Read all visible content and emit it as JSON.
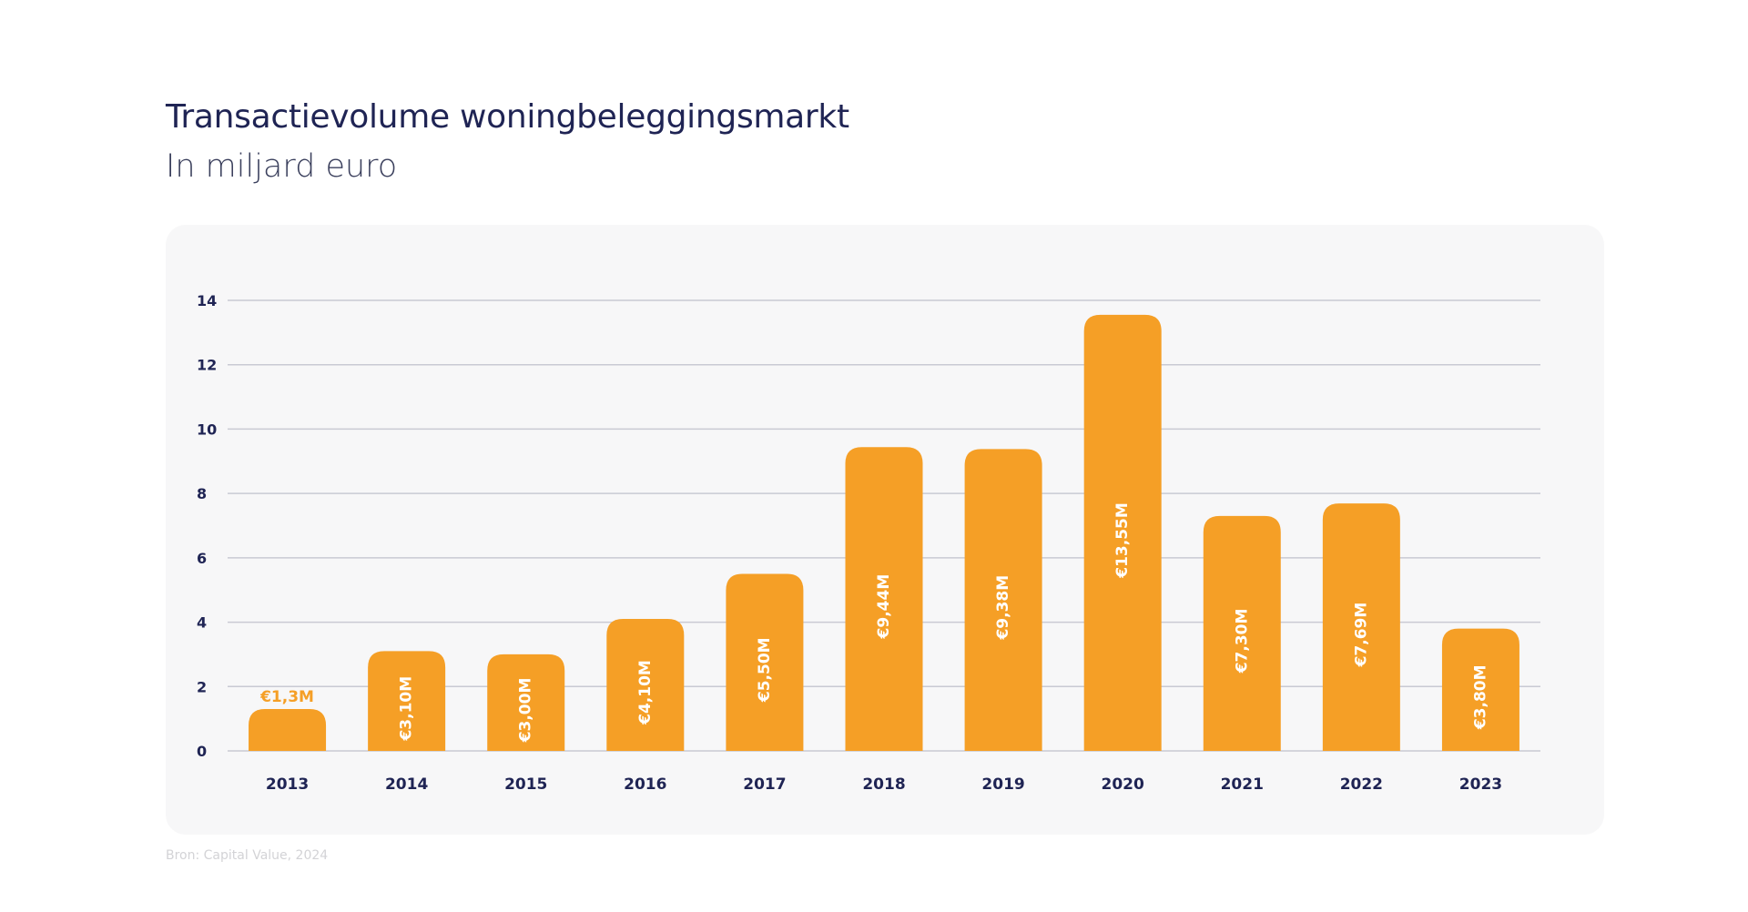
{
  "header": {
    "title": "Transactievolume woningbeleggingsmarkt",
    "subtitle": "In miljard euro"
  },
  "footer": {
    "source": "Bron: Capital Value, 2024"
  },
  "colors": {
    "bar": "#f59f26",
    "grid": "#c9cad3",
    "axis_text": "#1f2454",
    "label_inside": "#ffffff",
    "label_outside": "#f59f26",
    "card_background": "#f7f7f8"
  },
  "chart_data": {
    "type": "bar",
    "title": "Transactievolume woningbeleggingsmarkt",
    "subtitle": "In miljard euro",
    "xlabel": "",
    "ylabel": "",
    "categories": [
      "2013",
      "2014",
      "2015",
      "2016",
      "2017",
      "2018",
      "2019",
      "2020",
      "2021",
      "2022",
      "2023"
    ],
    "values": [
      1.3,
      3.1,
      3.0,
      4.1,
      5.5,
      9.44,
      9.38,
      13.55,
      7.3,
      7.69,
      3.8
    ],
    "data_labels": [
      "€1,3M",
      "€3,10M",
      "€3,00M",
      "€4,10M",
      "€5,50M",
      "€9,44M",
      "€9,38M",
      "€13,55M",
      "€7,30M",
      "€7,69M",
      "€3,80M"
    ],
    "ylim": [
      0,
      14
    ],
    "yticks": [
      0,
      2,
      4,
      6,
      8,
      10,
      12,
      14
    ],
    "grid": true,
    "legend": "none"
  }
}
